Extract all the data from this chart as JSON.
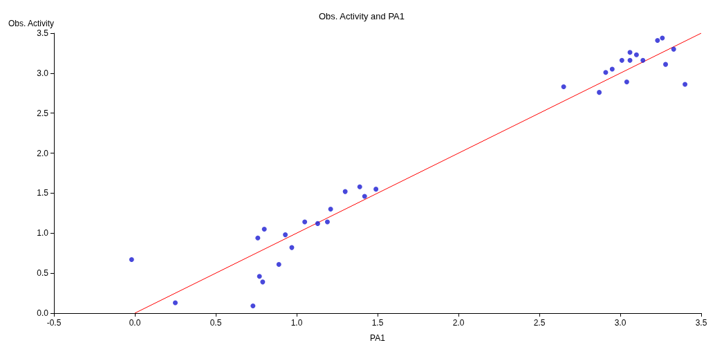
{
  "chart_data": {
    "type": "scatter",
    "title": "Obs. Activity and PA1",
    "xlabel": "PA1",
    "ylabel": "Obs. Activity",
    "xlim": [
      -0.5,
      3.5
    ],
    "ylim": [
      0,
      3.5
    ],
    "xticks": [
      -0.5,
      {
        "value": 0,
        "label": "0.0"
      },
      0.5,
      {
        "value": 1,
        "label": "1.0"
      },
      1.5,
      {
        "value": 2,
        "label": "2.0"
      },
      2.5,
      {
        "value": 3,
        "label": "3.0"
      },
      3.5
    ],
    "yticks": [
      {
        "value": 0,
        "label": "0.0"
      },
      0.5,
      {
        "value": 1,
        "label": "1.0"
      },
      1.5,
      {
        "value": 2,
        "label": "2.0"
      },
      2.5,
      {
        "value": 3,
        "label": "3.0"
      },
      3.5
    ],
    "grid": false,
    "marker": "circle",
    "series": [
      {
        "color": "#1a1ad2",
        "x": [
          -0.02,
          0.25,
          0.73,
          0.76,
          0.77,
          0.79,
          0.8,
          0.89,
          0.93,
          0.97,
          1.05,
          1.13,
          1.19,
          1.21,
          1.3,
          1.39,
          1.42,
          1.49,
          2.65,
          2.87,
          2.91,
          2.95,
          3.01,
          3.06,
          3.04,
          3.06,
          3.1,
          3.14,
          3.23,
          3.26,
          3.33,
          3.28,
          3.4
        ],
        "values": [
          0.67,
          0.13,
          0.09,
          0.94,
          0.46,
          0.39,
          1.05,
          0.61,
          0.98,
          0.82,
          1.14,
          1.12,
          1.14,
          1.3,
          1.52,
          1.58,
          1.46,
          1.55,
          2.83,
          2.76,
          3.01,
          3.05,
          3.16,
          3.16,
          2.89,
          3.26,
          3.23,
          3.16,
          3.41,
          3.44,
          3.3,
          3.11,
          2.86
        ]
      },
      {
        "type": "line",
        "color": "#ff0000",
        "x": [
          0,
          3.5
        ],
        "values": [
          0,
          3.5
        ],
        "marker": "none",
        "line_style": "solid"
      }
    ]
  }
}
